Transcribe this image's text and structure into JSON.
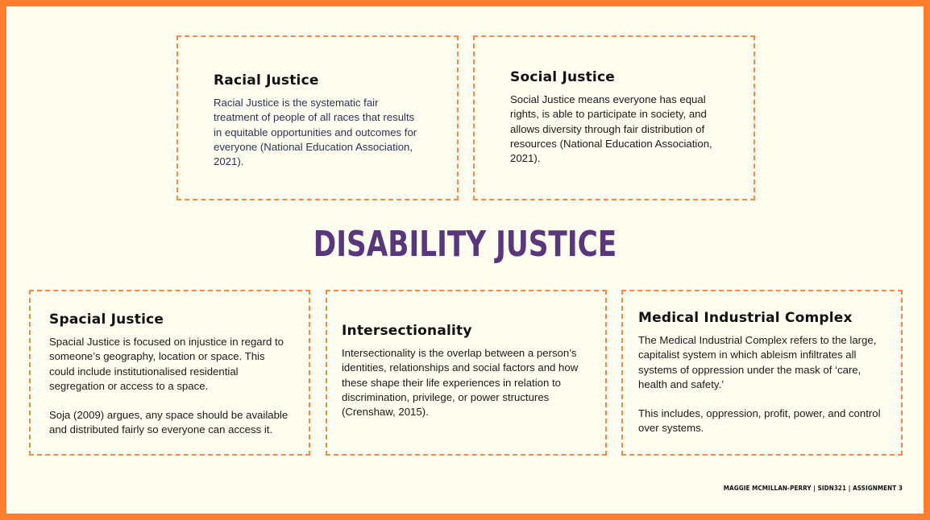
{
  "cards": {
    "racial": {
      "title": "Racial Justice",
      "body": "Racial Justice is the systematic fair treatment of people of all races that results in equitable opportunities and outcomes for everyone (National Education Association, 2021)."
    },
    "social": {
      "title": "Social Justice",
      "body": "Social Justice means everyone has equal rights, is able to participate in society, and allows diversity through fair distribution of resources (National Education Association, 2021)."
    },
    "spacial": {
      "title": "Spacial Justice",
      "body1": "Spacial Justice is focused on injustice in regard to someone’s geography, location or space. This could include institutionalised residential segregation or access to a space.",
      "body2": "Soja (2009) argues, any space should be available and distributed fairly so everyone can access it."
    },
    "intersectionality": {
      "title": "Intersectionality",
      "body": "Intersectionality is the overlap between a person’s identities, relationships and social factors and how these shape their life experiences in relation to discrimination, privilege, or power structures (Crenshaw, 2015)."
    },
    "medical": {
      "title": "Medical Industrial Complex",
      "body1": "The Medical Industrial Complex refers to the large, capitalist system in which ableism infiltrates all systems of oppression under the mask of ‘care, health and safety.’",
      "body2": "This includes, oppression, profit, power, and control over systems."
    }
  },
  "main_title": "DISABILITY JUSTICE",
  "footer": "MAGGIE MCMILLAN-PERRY | SIDN321 | ASSIGNMENT 3",
  "colors": {
    "frame": "#ff7f2f",
    "background": "#fefdf0",
    "dashed_border": "#f08a44",
    "title_purple": "#58377a"
  }
}
